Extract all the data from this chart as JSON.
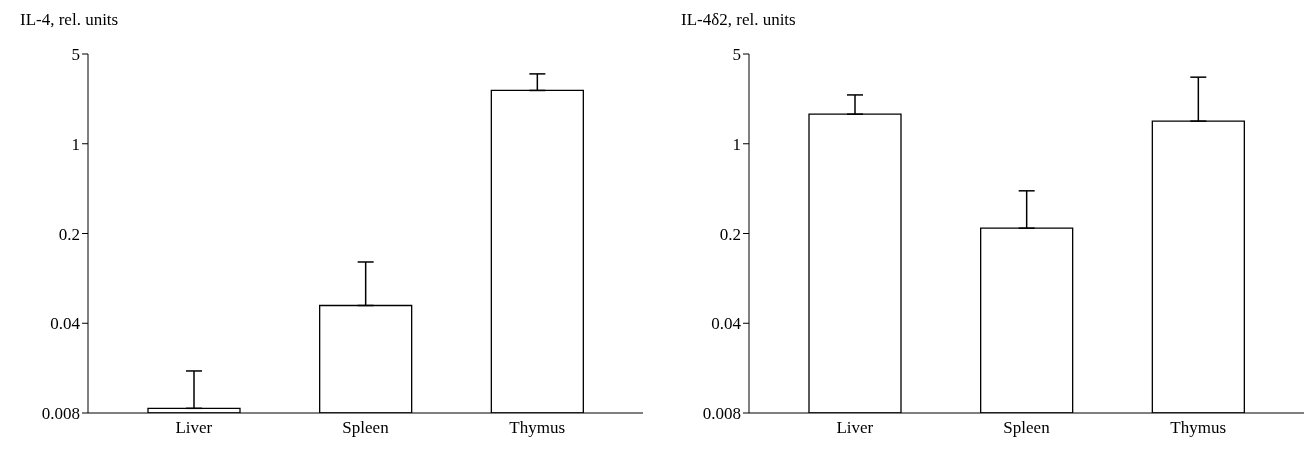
{
  "chart_data": [
    {
      "type": "bar",
      "ylabel": "IL-4, rel. units",
      "categories": [
        "Liver",
        "Spleen",
        "Thymus"
      ],
      "values": [
        0.0087,
        0.055,
        2.6
      ],
      "errors": [
        [
          0.0087,
          0.017
        ],
        [
          0.055,
          0.12
        ],
        [
          2.6,
          3.5
        ]
      ],
      "color": "#ffffff",
      "log": true,
      "ylim": [
        0.008,
        5
      ],
      "yticks": [
        0.008,
        0.04,
        0.2,
        1,
        5
      ]
    },
    {
      "type": "bar",
      "ylabel": "IL-4δ2, rel. units",
      "categories": [
        "Liver",
        "Spleen",
        "Thymus"
      ],
      "values": [
        1.7,
        0.22,
        1.5
      ],
      "errors": [
        [
          1.7,
          2.4
        ],
        [
          0.22,
          0.43
        ],
        [
          1.5,
          3.3
        ]
      ],
      "color": "#ffffff",
      "log": true,
      "ylim": [
        0.008,
        5
      ],
      "yticks": [
        0.008,
        0.04,
        0.2,
        1,
        5
      ]
    }
  ]
}
